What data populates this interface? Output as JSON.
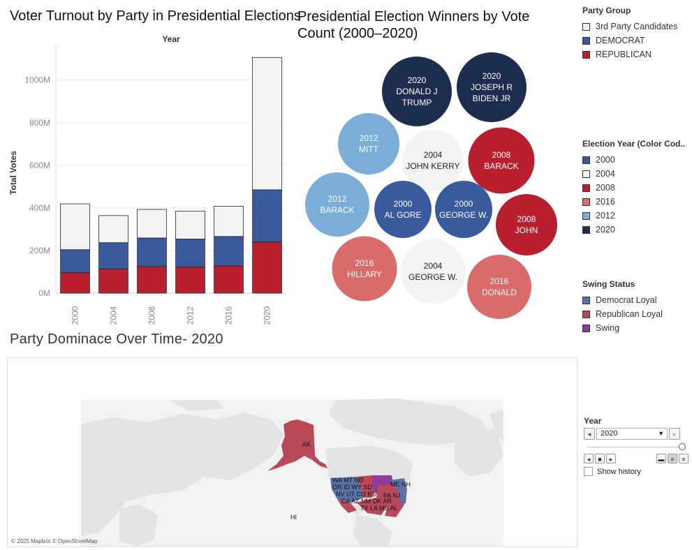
{
  "bar_chart": {
    "title": "Voter Turnout by Party in Presidential Elections"
  },
  "bubble_chart": {
    "title": "Presidential Election Winners by Vote Count (2000–2020)"
  },
  "map": {
    "title": "Party Dominace Over Time- 2020",
    "attribution": "© 2025 Mapbox © OpenStreetMap",
    "labels": [
      "AK",
      "HI"
    ],
    "colors": {
      "land": "#e3e3e3",
      "water": "#f2f2f2",
      "democrat": "#5b72a8",
      "republican": "#b94858",
      "swing": "#8e3a9e"
    }
  },
  "legends": {
    "party_group": {
      "title": "Party Group",
      "items": [
        {
          "label": "3rd Party Candidates",
          "color": "#f3f3f3"
        },
        {
          "label": "DEMOCRAT",
          "color": "#3a5a9e"
        },
        {
          "label": "REPUBLICAN",
          "color": "#b8202f"
        }
      ]
    },
    "election_year": {
      "title": "Election Year (Color Cod..",
      "items": [
        {
          "label": "2000",
          "color": "#3a5a9e"
        },
        {
          "label": "2004",
          "color": "#f3f3f3"
        },
        {
          "label": "2008",
          "color": "#b8202f"
        },
        {
          "label": "2016",
          "color": "#d96b6b"
        },
        {
          "label": "2012",
          "color": "#7aaed6"
        },
        {
          "label": "2020",
          "color": "#1c2d4f"
        }
      ]
    },
    "swing_status": {
      "title": "Swing Status",
      "items": [
        {
          "label": "Democrat Loyal",
          "color": "#5b72a8"
        },
        {
          "label": "Republican Loyal",
          "color": "#b94858"
        },
        {
          "label": "Swing",
          "color": "#8e3a9e"
        }
      ]
    }
  },
  "year_filter": {
    "title": "Year",
    "selected": "2020",
    "show_history_label": "Show history",
    "show_history_checked": false,
    "slider_position": 1.0
  },
  "chart_data": [
    {
      "type": "bar",
      "stacked": true,
      "title": "Voter Turnout by Party in Presidential Elections",
      "column_header": "Year",
      "xlabel": "",
      "ylabel": "Total Votes",
      "categories": [
        "2000",
        "2004",
        "2008",
        "2012",
        "2016",
        "2020"
      ],
      "series": [
        {
          "name": "REPUBLICAN",
          "color": "#b8202f",
          "values": [
            96,
            113,
            125,
            122,
            128,
            240
          ]
        },
        {
          "name": "DEMOCRAT",
          "color": "#3a5a9e",
          "values": [
            108,
            124,
            134,
            132,
            138,
            245
          ]
        },
        {
          "name": "3rd Party Candidates",
          "color": "#f3f3f3",
          "values": [
            215,
            127,
            134,
            131,
            142,
            621
          ]
        }
      ],
      "ylim": [
        0,
        1130
      ],
      "yticks": [
        0,
        200,
        400,
        600,
        800,
        1000
      ],
      "ytick_labels": [
        "0M",
        "200M",
        "400M",
        "600M",
        "800M",
        "1000M"
      ],
      "grid": true
    },
    {
      "type": "bubble",
      "title": "Presidential Election Winners by Vote Count (2000–2020)",
      "bubbles": [
        {
          "year": "2020",
          "name": "DONALD J TRUMP",
          "lines": [
            "2020",
            "DONALD J",
            "TRUMP"
          ],
          "color": "#1c2d4f",
          "size": 1.0
        },
        {
          "year": "2020",
          "name": "JOSEPH R BIDEN JR",
          "lines": [
            "2020",
            "JOSEPH R",
            "BIDEN JR"
          ],
          "color": "#1c2d4f",
          "size": 1.0
        },
        {
          "year": "2012",
          "name": "MITT",
          "lines": [
            "2012",
            "MITT"
          ],
          "color": "#7aaed6",
          "size": 0.88
        },
        {
          "year": "2004",
          "name": "JOHN KERRY",
          "lines": [
            "2004",
            "JOHN KERRY"
          ],
          "color": "#f3f3f3",
          "size": 0.88
        },
        {
          "year": "2008",
          "name": "BARACK",
          "lines": [
            "2008",
            "BARACK"
          ],
          "color": "#b8202f",
          "size": 0.95
        },
        {
          "year": "2012",
          "name": "BARACK",
          "lines": [
            "2012",
            "BARACK"
          ],
          "color": "#7aaed6",
          "size": 0.92
        },
        {
          "year": "2000",
          "name": "AL GORE",
          "lines": [
            "2000",
            "AL GORE"
          ],
          "color": "#3a5a9e",
          "size": 0.82
        },
        {
          "year": "2000",
          "name": "GEORGE W.",
          "lines": [
            "2000",
            "GEORGE W."
          ],
          "color": "#3a5a9e",
          "size": 0.82
        },
        {
          "year": "2008",
          "name": "JOHN",
          "lines": [
            "2008",
            "JOHN"
          ],
          "color": "#b8202f",
          "size": 0.88
        },
        {
          "year": "2016",
          "name": "HILLARY",
          "lines": [
            "2016",
            "HILLARY"
          ],
          "color": "#d96b6b",
          "size": 0.93
        },
        {
          "year": "2004",
          "name": "GEORGE W.",
          "lines": [
            "2004",
            "GEORGE W."
          ],
          "color": "#f3f3f3",
          "size": 0.93
        },
        {
          "year": "2016",
          "name": "DONALD",
          "lines": [
            "2016",
            "DONALD"
          ],
          "color": "#d96b6b",
          "size": 0.92
        }
      ]
    }
  ]
}
